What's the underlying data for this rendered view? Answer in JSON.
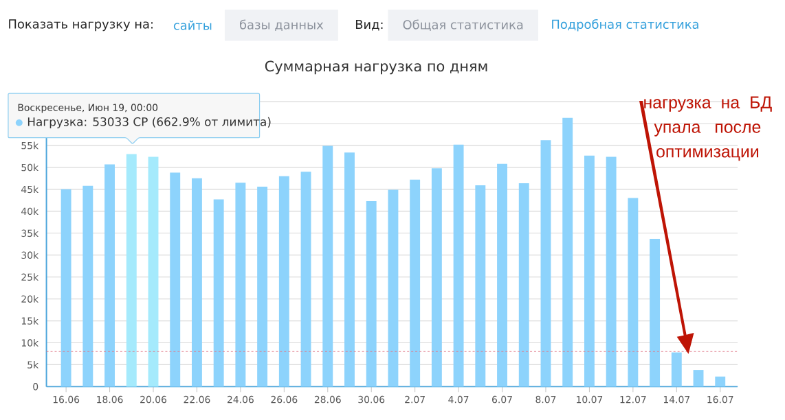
{
  "chart_data": {
    "type": "bar",
    "title": "Суммарная нагрузка по дням",
    "categories": [
      "16.06",
      null,
      "18.06",
      null,
      "20.06",
      null,
      "22.06",
      null,
      "24.06",
      null,
      "26.06",
      null,
      "28.06",
      null,
      "30.06",
      null,
      "2.07",
      null,
      "4.07",
      null,
      "6.07",
      null,
      "8.07",
      null,
      "10.07",
      null,
      "12.07",
      null,
      "14.07",
      null,
      "16.07"
    ],
    "values": [
      45000,
      45800,
      50700,
      53033,
      52400,
      48800,
      47500,
      42700,
      46500,
      45600,
      48000,
      49000,
      54900,
      53400,
      42300,
      44900,
      47200,
      49800,
      55200,
      45900,
      50800,
      46400,
      56200,
      61300,
      52700,
      52400,
      43000,
      33700,
      7800,
      3800,
      2300
    ],
    "colors": [
      "#8dd3fc",
      "#8dd3fc",
      "#8dd3fc",
      "#a5eafc",
      "#a5eafc",
      "#8dd3fc",
      "#8dd3fc",
      "#8dd3fc",
      "#8dd3fc",
      "#8dd3fc",
      "#8dd3fc",
      "#8dd3fc",
      "#8dd3fc",
      "#8dd3fc",
      "#8dd3fc",
      "#8dd3fc",
      "#8dd3fc",
      "#8dd3fc",
      "#8dd3fc",
      "#8dd3fc",
      "#8dd3fc",
      "#8dd3fc",
      "#8dd3fc",
      "#8dd3fc",
      "#8dd3fc",
      "#8dd3fc",
      "#8dd3fc",
      "#8dd3fc",
      "#8dd3fc",
      "#8dd3fc",
      "#8dd3fc"
    ],
    "ylim": [
      0,
      65000
    ],
    "yticks": [
      {
        "value": 0,
        "label": "0"
      },
      {
        "value": 5000,
        "label": "5k"
      },
      {
        "value": 10000,
        "label": "10k"
      },
      {
        "value": 15000,
        "label": "15k"
      },
      {
        "value": 20000,
        "label": "20k"
      },
      {
        "value": 25000,
        "label": "25k"
      },
      {
        "value": 30000,
        "label": "30k"
      },
      {
        "value": 35000,
        "label": "35k"
      },
      {
        "value": 40000,
        "label": "40k"
      },
      {
        "value": 45000,
        "label": "45k"
      },
      {
        "value": 50000,
        "label": "50k"
      },
      {
        "value": 55000,
        "label": "55k"
      },
      {
        "value": 60000,
        "label": null
      },
      {
        "value": 65000,
        "label": null
      }
    ],
    "grid": "y",
    "ref_lines": [
      {
        "axis": "y",
        "value": 8000,
        "color": "#e07a8a",
        "line_style": "dashed"
      }
    ],
    "annotations": [
      "Показать нагрузку на:",
      "сайты",
      "базы данных",
      "Вид:",
      "Общая статистика",
      "Подробная статистика",
      "Воскресенье, Июн 19, 00:00",
      "Нагрузка: 53033 CP (662.9% от лимита)",
      "нагрузка на БД упала после оптимизации"
    ]
  }
}
